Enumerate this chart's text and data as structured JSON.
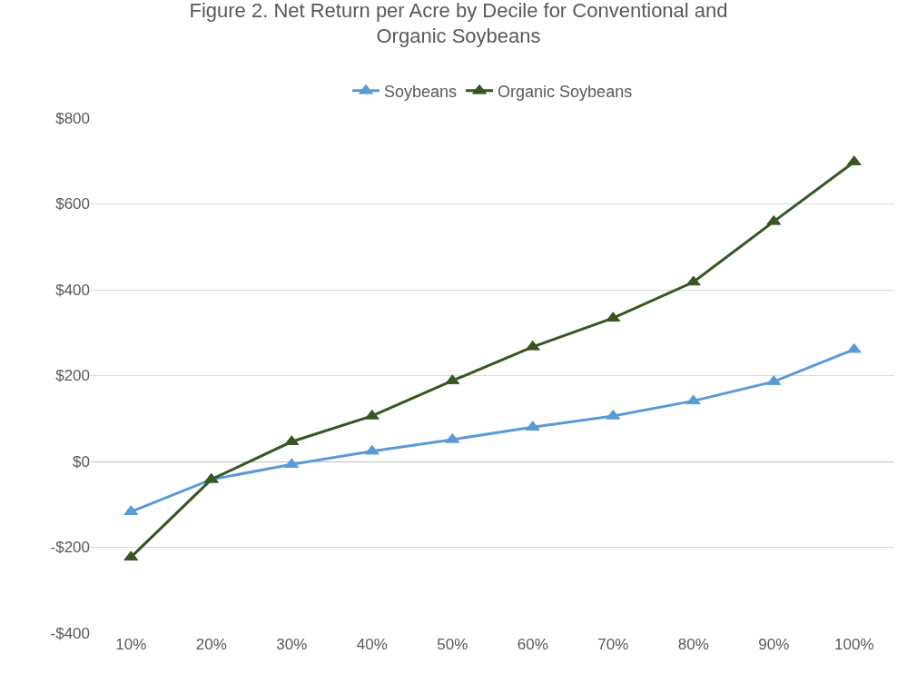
{
  "chart_data": {
    "type": "line",
    "title": "Figure 2. Net Return per Acre by Decile for Conventional and Organic Soybeans",
    "categories": [
      "10%",
      "20%",
      "30%",
      "40%",
      "50%",
      "60%",
      "70%",
      "80%",
      "90%",
      "100%"
    ],
    "series": [
      {
        "name": "Soybeans",
        "color": "#5b9bd5",
        "values": [
          -117,
          -42,
          -7,
          24,
          51,
          80,
          106,
          141,
          186,
          261
        ]
      },
      {
        "name": "Organic Soybeans",
        "color": "#375623",
        "values": [
          -223,
          -42,
          46,
          106,
          188,
          267,
          334,
          418,
          559,
          698
        ]
      }
    ],
    "ylim": [
      -400,
      800
    ],
    "yticks": [
      {
        "value": -400,
        "label": "-$400"
      },
      {
        "value": -200,
        "label": "-$200"
      },
      {
        "value": 0,
        "label": "$0"
      },
      {
        "value": 200,
        "label": "$200"
      },
      {
        "value": 400,
        "label": "$400"
      },
      {
        "value": 600,
        "label": "$600"
      },
      {
        "value": 800,
        "label": "$800"
      }
    ],
    "grid": "y",
    "legend": "top",
    "marker": "triangle",
    "line_style": "solid"
  }
}
